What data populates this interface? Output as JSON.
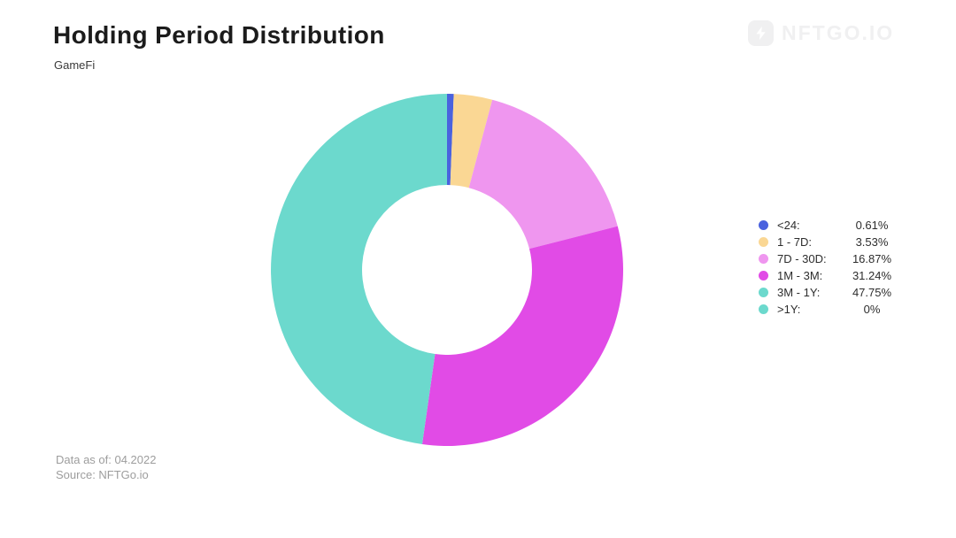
{
  "header": {
    "title": "Holding Period Distribution",
    "subtitle": "GameFi"
  },
  "logo": {
    "text": "NFTGO.IO",
    "icon": "nftgo-bolt-icon",
    "color": "#f0f0f1"
  },
  "footer": {
    "data_as_of": "Data as of: 04.2022",
    "source": "Source: NFTGo.io"
  },
  "chart_data": {
    "type": "pie",
    "title": "Holding Period Distribution",
    "subtitle": "GameFi",
    "donut": true,
    "inner_radius_ratio": 0.48,
    "start_angle": "top",
    "direction": "clockwise",
    "legend_position": "right",
    "categories": [
      "<24:",
      "1 - 7D:",
      "7D - 30D:",
      "1M - 3M:",
      "3M - 1Y:",
      ">1Y:"
    ],
    "values": [
      0.61,
      3.53,
      16.87,
      31.24,
      47.75,
      0
    ],
    "value_labels": [
      "0.61%",
      "3.53%",
      "16.87%",
      "31.24%",
      "47.75%",
      "0%"
    ],
    "colors": [
      "#4a62de",
      "#fad794",
      "#ef96ef",
      "#e14be6",
      "#6cd9cd",
      "#6cd9cd"
    ]
  }
}
